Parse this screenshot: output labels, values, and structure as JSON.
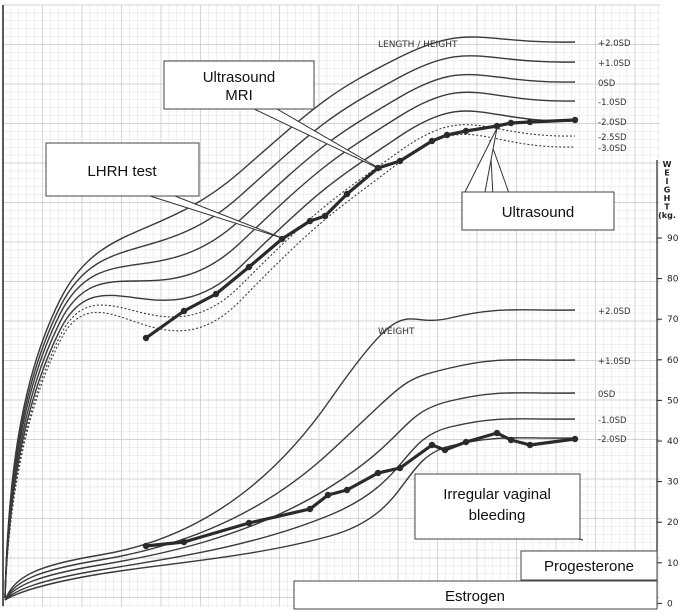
{
  "chart_data": {
    "type": "line",
    "title": "",
    "panels": [
      {
        "label": "LENGTH / HEIGHT",
        "curve_labels": [
          "+2.0SD",
          "+1.0SD",
          "0SD",
          "-1.0SD",
          "-2.0SD",
          "-2.5SD",
          "-3.0SD"
        ],
        "patient_series": {
          "x": [
            146,
            184,
            216,
            249,
            282,
            310,
            325,
            347,
            378,
            400,
            432,
            447,
            466,
            497,
            511,
            530,
            575
          ],
          "y": [
            338,
            311,
            294,
            267,
            239,
            221,
            216,
            194,
            168,
            161,
            141,
            135,
            131,
            126,
            123,
            122,
            120
          ]
        }
      },
      {
        "label": "WEIGHT",
        "curve_labels": [
          "+2.0SD",
          "+1.0SD",
          "0SD",
          "-1.0SD",
          "-2.0SD"
        ],
        "patient_series": {
          "x": [
            146,
            184,
            249,
            310,
            328,
            347,
            378,
            400,
            432,
            445,
            466,
            497,
            511,
            530,
            575
          ],
          "y": [
            546,
            542,
            523,
            509,
            495,
            490,
            473,
            468,
            445,
            450,
            442,
            433,
            440,
            445,
            439
          ]
        }
      }
    ],
    "right_axis": {
      "title": "WEIGHT (kg.",
      "ticks": [
        "90",
        "80",
        "70",
        "60",
        "50",
        "40",
        "30",
        "20",
        "10",
        "0"
      ]
    },
    "grid": true,
    "annotations": [
      "Ultrasound MRI",
      "LHRH test",
      "Ultrasound",
      "Irregular vaginal bleeding",
      "Progesterone",
      "Estrogen"
    ],
    "colors": {
      "curve": "#3a3a3a",
      "patient": "#2a2a2a",
      "grid_fine": "#e2e2e2",
      "grid_major": "#c4c4c4"
    }
  }
}
